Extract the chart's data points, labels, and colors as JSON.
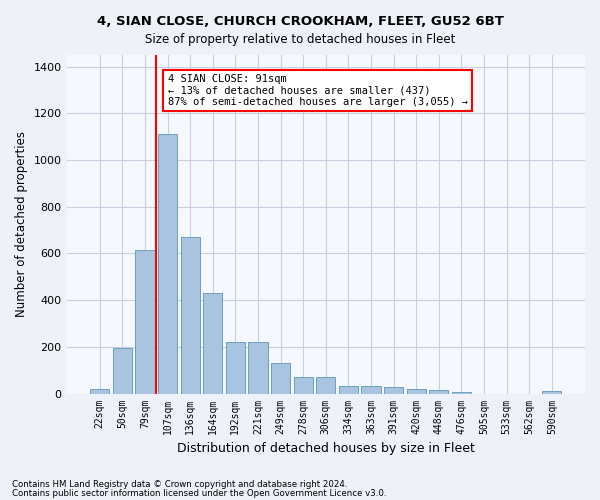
{
  "title1": "4, SIAN CLOSE, CHURCH CROOKHAM, FLEET, GU52 6BT",
  "title2": "Size of property relative to detached houses in Fleet",
  "xlabel": "Distribution of detached houses by size in Fleet",
  "ylabel": "Number of detached properties",
  "categories": [
    "22sqm",
    "50sqm",
    "79sqm",
    "107sqm",
    "136sqm",
    "164sqm",
    "192sqm",
    "221sqm",
    "249sqm",
    "278sqm",
    "306sqm",
    "334sqm",
    "363sqm",
    "391sqm",
    "420sqm",
    "448sqm",
    "476sqm",
    "505sqm",
    "533sqm",
    "562sqm",
    "590sqm"
  ],
  "values": [
    18,
    195,
    615,
    1110,
    670,
    430,
    220,
    220,
    130,
    73,
    73,
    32,
    32,
    28,
    18,
    14,
    7,
    0,
    0,
    0,
    10
  ],
  "bar_color": "#a8c4e0",
  "bar_edge_color": "#6a9fc0",
  "vline_x": 2.5,
  "vline_color": "red",
  "annotation_text": "4 SIAN CLOSE: 91sqm\n← 13% of detached houses are smaller (437)\n87% of semi-detached houses are larger (3,055) →",
  "annotation_box_color": "white",
  "annotation_box_edge_color": "red",
  "ylim": [
    0,
    1450
  ],
  "yticks": [
    0,
    200,
    400,
    600,
    800,
    1000,
    1200,
    1400
  ],
  "footer1": "Contains HM Land Registry data © Crown copyright and database right 2024.",
  "footer2": "Contains public sector information licensed under the Open Government Licence v3.0.",
  "bg_color": "#eef2f8",
  "plot_bg_color": "#f5f8fd",
  "grid_color": "#c8d0e0"
}
